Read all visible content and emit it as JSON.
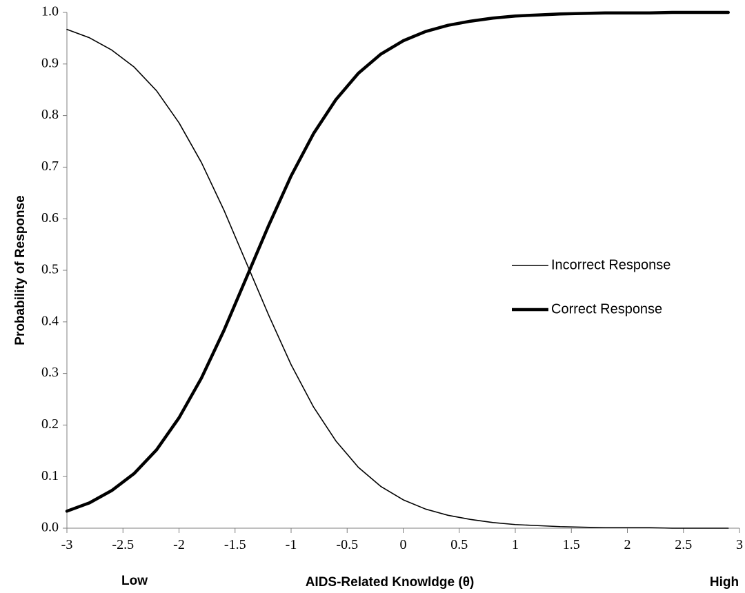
{
  "chart_data": {
    "type": "line",
    "x_label": "AIDS-Related Knowldge (θ)",
    "y_label": "Probability of Response",
    "x_low_label": "Low",
    "x_high_label": "High",
    "x": [
      -3,
      -2.8,
      -2.6,
      -2.4,
      -2.2,
      -2,
      -1.8,
      -1.6,
      -1.4,
      -1.2,
      -1,
      -0.8,
      -0.6,
      -0.4,
      -0.2,
      0,
      0.2,
      0.4,
      0.6,
      0.8,
      1,
      1.2,
      1.4,
      1.6,
      1.8,
      2,
      2.2,
      2.4,
      2.6,
      2.8,
      2.9
    ],
    "series": [
      {
        "name": "Incorrect Response",
        "color": "#000000",
        "width": 1.6,
        "values": [
          0.967,
          0.951,
          0.927,
          0.894,
          0.848,
          0.786,
          0.709,
          0.617,
          0.515,
          0.413,
          0.317,
          0.235,
          0.169,
          0.118,
          0.081,
          0.055,
          0.037,
          0.025,
          0.017,
          0.011,
          0.007,
          0.005,
          0.003,
          0.002,
          0.001,
          0.001,
          0.001,
          0,
          0,
          0,
          0
        ]
      },
      {
        "name": "Correct Response",
        "color": "#000000",
        "width": 4.5,
        "values": [
          0.033,
          0.049,
          0.073,
          0.106,
          0.152,
          0.214,
          0.291,
          0.383,
          0.485,
          0.587,
          0.683,
          0.765,
          0.831,
          0.882,
          0.919,
          0.945,
          0.963,
          0.975,
          0.983,
          0.989,
          0.993,
          0.995,
          0.997,
          0.998,
          0.999,
          0.999,
          0.999,
          1,
          1,
          1,
          1
        ]
      }
    ],
    "xlim": [
      -3,
      3
    ],
    "xticks": [
      -3,
      -2.5,
      -2,
      -1.5,
      -1,
      -0.5,
      0,
      0.5,
      1,
      1.5,
      2,
      2.5,
      3
    ],
    "ylim": [
      0,
      1
    ],
    "yticks": [
      {
        "value": 0,
        "label": "0.0"
      },
      0.1,
      0.2,
      0.3,
      0.4,
      0.5,
      0.6,
      0.7,
      0.8,
      0.9,
      {
        "value": 1,
        "label": "1.0"
      }
    ],
    "grid": false,
    "legend_position": "right"
  }
}
